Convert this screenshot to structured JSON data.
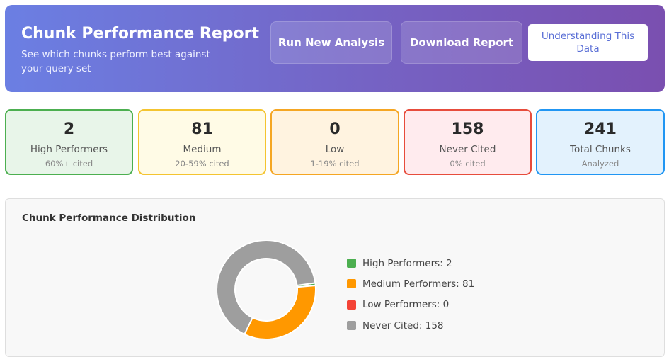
{
  "header": {
    "title": "Chunk Performance Report",
    "subtitle": "See which chunks perform best against your query set",
    "run_button": "Run New Analysis",
    "download_button": "Download Report",
    "help_button": "Understanding This Data"
  },
  "stats": [
    {
      "value": "2",
      "label": "High Performers",
      "sub": "60%+ cited",
      "bg": "#e8f5e9",
      "border": "#4caf50"
    },
    {
      "value": "81",
      "label": "Medium",
      "sub": "20-59% cited",
      "bg": "#fffbe6",
      "border": "#f4c430"
    },
    {
      "value": "0",
      "label": "Low",
      "sub": "1-19% cited",
      "bg": "#fff3e0",
      "border": "#f5a623"
    },
    {
      "value": "158",
      "label": "Never Cited",
      "sub": "0% cited",
      "bg": "#ffebee",
      "border": "#e74c3c"
    },
    {
      "value": "241",
      "label": "Total Chunks",
      "sub": "Analyzed",
      "bg": "#e3f2fd",
      "border": "#2196f3"
    }
  ],
  "distribution": {
    "title": "Chunk Performance Distribution",
    "legend": [
      {
        "label": "High Performers: 2",
        "color": "#4caf50"
      },
      {
        "label": "Medium Performers: 81",
        "color": "#ff9800"
      },
      {
        "label": "Low Performers: 0",
        "color": "#f44336"
      },
      {
        "label": "Never Cited: 158",
        "color": "#9e9e9e"
      }
    ]
  },
  "chart_data": {
    "type": "pie",
    "title": "Chunk Performance Distribution",
    "categories": [
      "High Performers",
      "Medium Performers",
      "Low Performers",
      "Never Cited"
    ],
    "values": [
      2,
      81,
      0,
      158
    ],
    "colors": [
      "#4caf50",
      "#ff9800",
      "#f44336",
      "#9e9e9e"
    ],
    "legend": "right"
  }
}
